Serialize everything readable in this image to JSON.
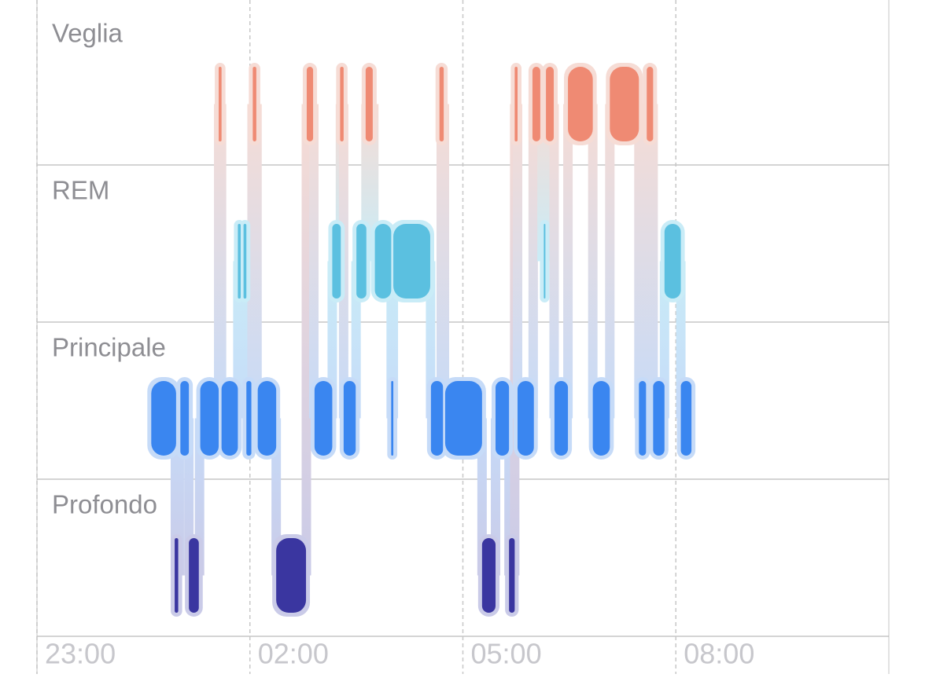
{
  "chart_data": {
    "type": "hypnogram",
    "xlim": [
      23,
      35
    ],
    "xticks": [
      {
        "value": 23,
        "label": "23:00"
      },
      {
        "value": 26,
        "label": "02:00"
      },
      {
        "value": 29,
        "label": "05:00"
      },
      {
        "value": 32,
        "label": "08:00"
      }
    ],
    "series": [
      {
        "name": "Veglia",
        "color": "#ef8a73",
        "intervals": [
          [
            25.56,
            25.6
          ],
          [
            26.04,
            26.09
          ],
          [
            26.8,
            26.89
          ],
          [
            27.27,
            27.32
          ],
          [
            27.63,
            27.73
          ],
          [
            28.67,
            28.73
          ],
          [
            29.73,
            29.77
          ],
          [
            29.98,
            30.09
          ],
          [
            30.17,
            30.28
          ],
          [
            30.48,
            30.83
          ],
          [
            31.07,
            31.48
          ],
          [
            31.59,
            31.68
          ]
        ]
      },
      {
        "name": "REM",
        "color": "#5bc0e0",
        "intervals": [
          [
            25.83,
            25.87
          ],
          [
            25.91,
            25.95
          ],
          [
            27.16,
            27.28
          ],
          [
            27.5,
            27.64
          ],
          [
            27.76,
            27.99
          ],
          [
            28.02,
            28.54
          ],
          [
            30.14,
            30.16
          ],
          [
            31.84,
            32.07
          ]
        ]
      },
      {
        "name": "Principale",
        "color": "#3a86f0",
        "intervals": [
          [
            24.61,
            24.96
          ],
          [
            25.02,
            25.14
          ],
          [
            25.3,
            25.56
          ],
          [
            25.6,
            25.83
          ],
          [
            25.95,
            26.02
          ],
          [
            26.11,
            26.37
          ],
          [
            26.91,
            27.16
          ],
          [
            27.32,
            27.49
          ],
          [
            27.99,
            28.02
          ],
          [
            28.55,
            28.72
          ],
          [
            28.75,
            29.27
          ],
          [
            29.46,
            29.65
          ],
          [
            29.77,
            30.0
          ],
          [
            30.29,
            30.48
          ],
          [
            30.83,
            31.07
          ],
          [
            31.48,
            31.58
          ],
          [
            31.68,
            31.84
          ],
          [
            32.07,
            32.22
          ]
        ]
      },
      {
        "name": "Profondo",
        "color": "#3a36a0",
        "intervals": [
          [
            24.94,
            24.99
          ],
          [
            25.14,
            25.28
          ],
          [
            26.37,
            26.79
          ],
          [
            29.27,
            29.46
          ],
          [
            29.65,
            29.73
          ]
        ]
      }
    ]
  }
}
